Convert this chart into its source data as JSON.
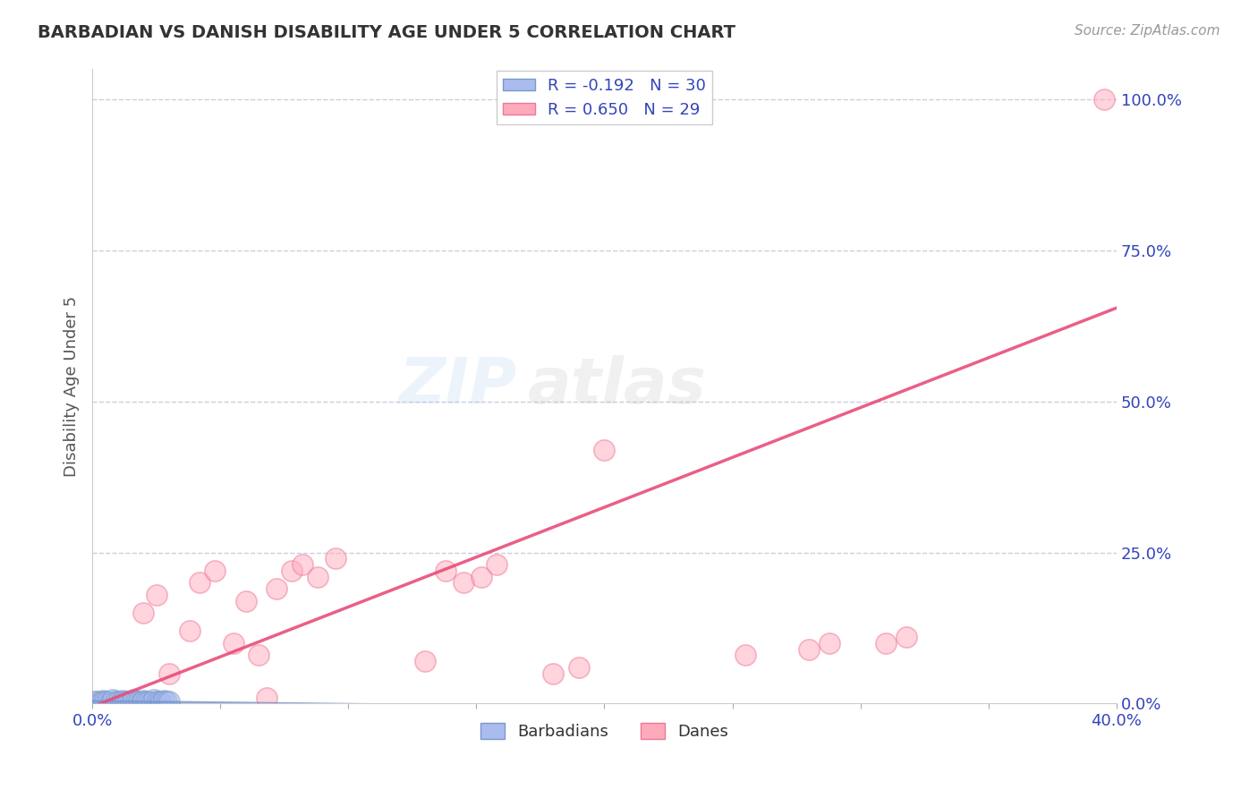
{
  "title": "BARBADIAN VS DANISH DISABILITY AGE UNDER 5 CORRELATION CHART",
  "source": "Source: ZipAtlas.com",
  "ylabel": "Disability Age Under 5",
  "xlim": [
    0.0,
    0.4
  ],
  "ylim": [
    0.0,
    1.05
  ],
  "grid_color": "#ccccdd",
  "barbadian_color": "#aabbee",
  "barbadian_edge": "#7799cc",
  "danish_color": "#ffaabb",
  "danish_edge": "#ee7799",
  "R_barbadian": -0.192,
  "N_barbadian": 30,
  "R_danish": 0.65,
  "N_danish": 29,
  "watermark_zip": "ZIP",
  "watermark_atlas": "atlas",
  "barb_trend_slope": -0.05,
  "barb_trend_intercept": 0.004,
  "dane_trend_slope": 1.65,
  "dane_trend_intercept": -0.005,
  "barbadians_x": [
    0.001,
    0.002,
    0.003,
    0.004,
    0.005,
    0.006,
    0.007,
    0.008,
    0.009,
    0.01,
    0.011,
    0.012,
    0.013,
    0.014,
    0.015,
    0.016,
    0.017,
    0.018,
    0.019,
    0.02,
    0.021,
    0.022,
    0.023,
    0.024,
    0.025,
    0.026,
    0.027,
    0.028,
    0.029,
    0.03
  ],
  "barbadians_y": [
    0.003,
    0.004,
    0.002,
    0.005,
    0.003,
    0.004,
    0.002,
    0.006,
    0.003,
    0.004,
    0.002,
    0.005,
    0.003,
    0.004,
    0.002,
    0.006,
    0.003,
    0.004,
    0.002,
    0.005,
    0.003,
    0.004,
    0.002,
    0.006,
    0.003,
    0.004,
    0.002,
    0.005,
    0.003,
    0.004
  ],
  "danes_x": [
    0.02,
    0.025,
    0.03,
    0.038,
    0.042,
    0.048,
    0.055,
    0.06,
    0.065,
    0.072,
    0.078,
    0.082,
    0.088,
    0.095,
    0.13,
    0.138,
    0.145,
    0.152,
    0.158,
    0.2,
    0.255,
    0.28,
    0.288,
    0.31,
    0.318,
    0.18,
    0.19,
    0.068,
    0.395
  ],
  "danes_y": [
    0.15,
    0.18,
    0.05,
    0.12,
    0.2,
    0.22,
    0.1,
    0.17,
    0.08,
    0.19,
    0.22,
    0.23,
    0.21,
    0.24,
    0.07,
    0.22,
    0.2,
    0.21,
    0.23,
    0.42,
    0.08,
    0.09,
    0.1,
    0.1,
    0.11,
    0.05,
    0.06,
    0.01,
    1.0
  ]
}
